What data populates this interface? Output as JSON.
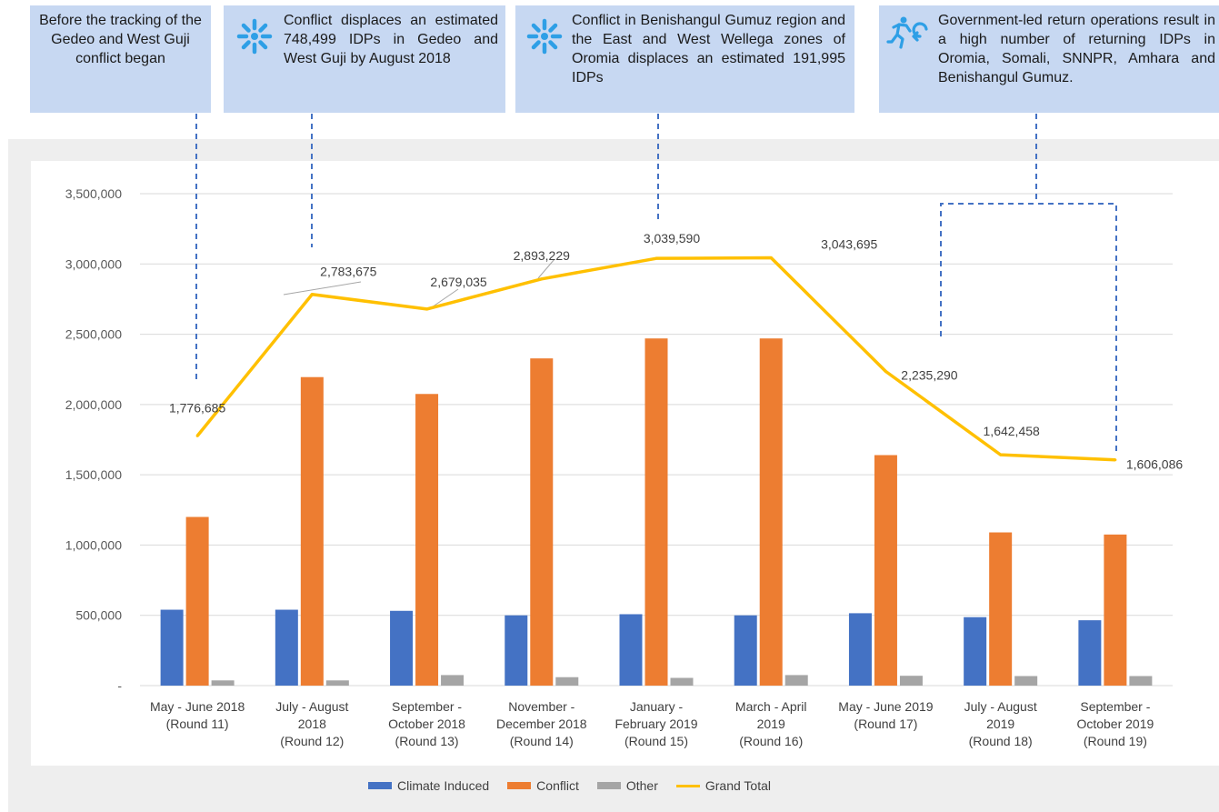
{
  "callouts": [
    {
      "text": "Before the tracking of the Gedeo and West Guji conflict began",
      "icon": ""
    },
    {
      "text": "Conflict displaces an estimated 748,499 IDPs in Gedeo and West Guji by August 2018",
      "icon": "burst-icon"
    },
    {
      "text": "Conflict in Benishangul Gumuz region and the East and West Wellega zones of Oromia displaces an estimated 191,995 IDPs",
      "icon": "burst-icon"
    },
    {
      "text": "Government-led return operations result in a high number of returning IDPs in Oromia, Somali, SNNPR, Amhara and Benishangul Gumuz.",
      "icon": "running-return-icon"
    }
  ],
  "chart_data": {
    "type": "bar",
    "categories": [
      [
        "May - June 2018",
        "(Round 11)"
      ],
      [
        "July - August",
        "2018",
        "(Round 12)"
      ],
      [
        "September -",
        "October 2018",
        "(Round 13)"
      ],
      [
        "November -",
        "December 2018",
        "(Round 14)"
      ],
      [
        "January -",
        "February 2019",
        "(Round 15)"
      ],
      [
        "March - April",
        "2019",
        "(Round 16)"
      ],
      [
        "May - June 2019",
        "(Round 17)"
      ],
      [
        "July - August",
        "2019",
        "(Round 18)"
      ],
      [
        "September -",
        "October 2019",
        "(Round 19)"
      ]
    ],
    "series": [
      {
        "name": "Climate Induced",
        "type": "bar",
        "color": "#4472c4",
        "values": [
          540000,
          540000,
          532000,
          500000,
          508000,
          500000,
          515000,
          487000,
          465000
        ]
      },
      {
        "name": "Conflict",
        "type": "bar",
        "color": "#ed7d31",
        "values": [
          1200000,
          2195000,
          2075000,
          2328000,
          2470000,
          2470000,
          1640000,
          1090000,
          1075000
        ]
      },
      {
        "name": "Other",
        "type": "bar",
        "color": "#a5a5a5",
        "values": [
          37000,
          37000,
          75000,
          60000,
          55000,
          75000,
          70000,
          68000,
          68000
        ]
      },
      {
        "name": "Grand Total",
        "type": "line",
        "color": "#ffc000",
        "values": [
          1776685,
          2783675,
          2679035,
          2893229,
          3039590,
          3043695,
          2235290,
          1642458,
          1606086
        ]
      }
    ],
    "data_labels": [
      "1,776,685",
      "2,783,675",
      "2,679,035",
      "2,893,229",
      "3,039,590",
      "3,043,695",
      "2,235,290",
      "1,642,458",
      "1,606,086"
    ],
    "y_ticks": [
      0,
      500000,
      1000000,
      1500000,
      2000000,
      2500000,
      3000000,
      3500000
    ],
    "y_tick_labels": [
      "-",
      "500,000",
      "1,000,000",
      "1,500,000",
      "2,000,000",
      "2,500,000",
      "3,000,000",
      "3,500,000"
    ],
    "ylim": [
      0,
      3500000
    ],
    "grid": true,
    "legend_position": "bottom"
  }
}
